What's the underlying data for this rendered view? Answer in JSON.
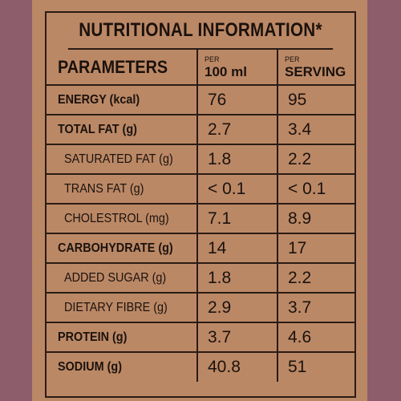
{
  "title": "NUTRITIONAL INFORMATION*",
  "header": {
    "parameters": "PARAMETERS",
    "col1_small": "PER",
    "col1_big": "100 ml",
    "col2_small": "PER",
    "col2_big": "SERVING"
  },
  "rows": [
    {
      "name": "ENERGY (kcal)",
      "per100": "76",
      "serving": "95",
      "bold": true
    },
    {
      "name": "TOTAL FAT (g)",
      "per100": "2.7",
      "serving": "3.4",
      "bold": true
    },
    {
      "name": "SATURATED FAT (g)",
      "per100": "1.8",
      "serving": "2.2",
      "bold": false
    },
    {
      "name": "TRANS FAT (g)",
      "per100": "< 0.1",
      "serving": "< 0.1",
      "bold": false
    },
    {
      "name": "CHOLESTROL (mg)",
      "per100": "7.1",
      "serving": "8.9",
      "bold": false
    },
    {
      "name": "CARBOHYDRATE (g)",
      "per100": "14",
      "serving": "17",
      "bold": true
    },
    {
      "name": "ADDED SUGAR (g)",
      "per100": "1.8",
      "serving": "2.2",
      "bold": false
    },
    {
      "name": "DIETARY FIBRE (g)",
      "per100": "2.9",
      "serving": "3.7",
      "bold": false
    },
    {
      "name": "PROTEIN (g)",
      "per100": "3.7",
      "serving": "4.6",
      "bold": true
    },
    {
      "name": "SODIUM (g)",
      "per100": "40.8",
      "serving": "51",
      "bold": true
    }
  ]
}
